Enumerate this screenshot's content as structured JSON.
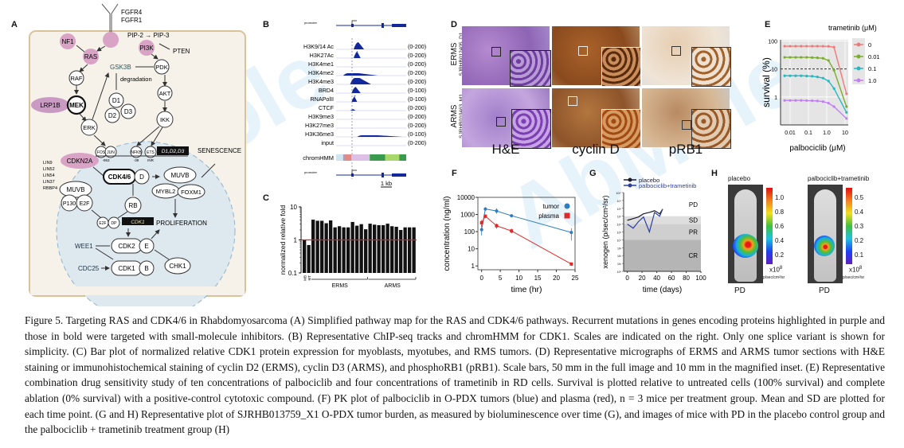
{
  "figure": {
    "panels": {
      "A": {
        "letter": "A",
        "receptors": [
          "FGFR4",
          "FGFR1"
        ],
        "nodes": {
          "nf1": "NF1",
          "ras": "RAS",
          "pi3k": "PI3K",
          "pip": "PIP-2 → PIP-3",
          "pten": "PTEN",
          "raf": "RAF",
          "gsk3b": "GSK3B",
          "degradation": "degradation",
          "pdk": "PDK",
          "lrp1b": "LRP1B",
          "mek": "MEK",
          "d1": "D1",
          "d2": "D2",
          "d3": "D3",
          "akt": "AKT",
          "erk": "ERK",
          "ikk": "IKK",
          "fos": "FOS",
          "jun": "JUN",
          "nfkb": "NFKB",
          "ets": "ETS",
          "fos_sub": "-953",
          "nfkb_sub": "-39",
          "ets_sub": "INR",
          "d_box": "D1,D2,D3",
          "senescence": "SENESCENCE",
          "cdkn2a": "CDKN2A",
          "lin": [
            "LIN9",
            "LIN52",
            "LIN54",
            "LIN37",
            "RBBP4"
          ],
          "cdk46": "CDK4/6",
          "dm": "D",
          "muvb_right": "MUVB",
          "mybl2": "MYBL2",
          "foxm1": "FOXM1",
          "muvb_left": "MUVB",
          "p130": "P130",
          "e2f": "E2F",
          "rb": "RB",
          "e2f_small": "E2F",
          "dp": "DP",
          "cdk1_box": "CDK1",
          "proliferation": "PROLIFERATION",
          "wee1": "WEE1",
          "cdk2": "CDK2",
          "e": "E",
          "chk1": "CHK1",
          "cdc25": "CDC25",
          "cdk1": "CDK1",
          "b": "B"
        },
        "colors": {
          "mutated": "#d9a3c6",
          "cell": "#f6f2ea",
          "membrane": "#d9c29a",
          "nucleus": "#dde8ef"
        }
      },
      "B": {
        "letter": "B",
        "promoter_label": "promoter",
        "tracks": [
          {
            "name": "H3K9/14 Ac",
            "scale": "(0-200)"
          },
          {
            "name": "H3K27Ac",
            "scale": "(0-200)"
          },
          {
            "name": "H3K4me1",
            "scale": "(0-200)"
          },
          {
            "name": "H3K4me2",
            "scale": "(0-200)"
          },
          {
            "name": "H3K4me3",
            "scale": "(0-200)"
          },
          {
            "name": "BRD4",
            "scale": "(0-100)"
          },
          {
            "name": "RNAPolII",
            "scale": "(0-100)"
          },
          {
            "name": "CTCF",
            "scale": "(0-200)"
          },
          {
            "name": "H3K9me3",
            "scale": "(0-200)"
          },
          {
            "name": "H3K27me3",
            "scale": "(0-200)"
          },
          {
            "name": "H3K36me3",
            "scale": "(0-100)"
          },
          {
            "name": "input",
            "scale": "(0-200)"
          }
        ],
        "chromhmm_label": "chromHMM",
        "chromhmm_segments": [
          {
            "color": "#cfe6f0",
            "frac": 0.1
          },
          {
            "color": "#a89cc8",
            "frac": 0.02
          },
          {
            "color": "#e08a8a",
            "frac": 0.1
          },
          {
            "color": "#dcc0e8",
            "frac": 0.26
          },
          {
            "color": "#3a9a4e",
            "frac": 0.22
          },
          {
            "color": "#a6d86a",
            "frac": 0.2
          },
          {
            "color": "#3a9a4e",
            "frac": 0.1
          }
        ],
        "scale_bar": "1 kb"
      },
      "C": {
        "letter": "C"
      },
      "D": {
        "letter": "D",
        "rows": [
          {
            "type": "ERMS",
            "sample": "SJRHB012405_D1"
          },
          {
            "type": "ARMS",
            "sample": "SJRHB010463_M1"
          }
        ],
        "columns": [
          "H&E",
          "cyclin D",
          "pRB1"
        ]
      },
      "E": {
        "letter": "E"
      },
      "F": {
        "letter": "F"
      },
      "G": {
        "letter": "G"
      },
      "H": {
        "letter": "H",
        "images": [
          {
            "title": "placebo",
            "outcome": "PD",
            "scale_ticks": [
              "1.0",
              "0.8",
              "0.6",
              "0.4",
              "0.2"
            ],
            "multiplier": "x10",
            "exp": "8",
            "unit": "p/sec/cm²/sr"
          },
          {
            "title": "palbociclib+trametinib",
            "outcome": "PD",
            "scale_ticks": [
              "0.5",
              "0.4",
              "0.3",
              "0.2",
              "0.1"
            ],
            "multiplier": "x10",
            "exp": "8",
            "unit": "p/sec/cm²/sr"
          }
        ]
      }
    },
    "caption": "Figure 5. Targeting RAS and CDK4/6 in Rhabdomyosarcoma (A) Simplified pathway map for the RAS and CDK4/6 pathways. Recurrent mutations in genes encoding proteins highlighted in purple and those in bold were targeted with small-molecule inhibitors. (B) Representative ChIP-seq tracks and chromHMM for CDK1. Scales are indicated on the right. Only one splice variant is shown for simplicity. (C) Bar plot of normalized relative CDK1 protein expression for myoblasts, myotubes, and RMS tumors. (D) Representative micrographs of ERMS and ARMS tumor sections with H&E staining or immunohistochemical staining of cyclin D2 (ERMS), cyclin D3 (ARMS), and phosphoRB1 (pRB1). Scale bars, 50 mm in the full image and 10 mm in the magnified inset. (E) Representative combination drug sensitivity study of ten concentrations of palbociclib and four concentrations of trametinib in RD cells. Survival is plotted relative to untreated cells (100% survival) and complete ablation (0% survival) with a positive-control cytotoxic compound. (F) PK plot of palbociclib in O-PDX tumors (blue) and plasma (red), n = 3 mice per treatment group. Mean and SD are plotted for each time point. (G and H) Representative plot of SJRHB013759_X1 O-PDX tumor burden, as measured by bioluminescence over time (G), and images of mice with PD in the placebo control group and the palbociclib + trametinib treatment group (H)",
    "watermark": "AbMole"
  },
  "chart_data": [
    {
      "panel": "C",
      "type": "bar",
      "title": "",
      "ylabel": "normalized relative fold",
      "yscale": "log",
      "ylim": [
        0.1,
        10
      ],
      "yticks": [
        "0.1",
        "1",
        "10"
      ],
      "reference_line": {
        "value": 1,
        "color": "#e02020"
      },
      "categories": [
        "MB",
        "MT",
        "ERMS",
        "ERMS",
        "ERMS",
        "ERMS",
        "ERMS",
        "ERMS",
        "ERMS",
        "ERMS",
        "ERMS",
        "ERMS",
        "ERMS",
        "ERMS",
        "ERMS",
        "ARMS",
        "ARMS",
        "ARMS",
        "ARMS",
        "ARMS",
        "ARMS",
        "ARMS",
        "ARMS",
        "ARMS",
        "ARMS",
        "ARMS"
      ],
      "group_labels": [
        {
          "label": "MB",
          "range": [
            0,
            0
          ]
        },
        {
          "label": "MT",
          "range": [
            1,
            1
          ]
        },
        {
          "label": "ERMS",
          "range": [
            2,
            14
          ]
        },
        {
          "label": "ARMS",
          "range": [
            15,
            25
          ]
        }
      ],
      "values": [
        1.0,
        0.7,
        4.1,
        3.8,
        3.8,
        3.2,
        3.9,
        2.4,
        2.6,
        2.4,
        2.4,
        3.5,
        2.7,
        3.0,
        2.1,
        3.1,
        2.9,
        2.8,
        2.8,
        3.1,
        2.6,
        2.5,
        2.0,
        2.4,
        2.4,
        2.4
      ]
    },
    {
      "panel": "E",
      "type": "line",
      "title": "",
      "xlabel": "palbociclib (μM)",
      "ylabel": "survival (%)",
      "xscale": "log",
      "yscale": "log",
      "xlim": [
        0.003,
        15
      ],
      "ylim": [
        0.1,
        110
      ],
      "xticks": [
        "0.01",
        "0.1",
        "1.0",
        "10"
      ],
      "yticks": [
        "1",
        "10",
        "100"
      ],
      "reference_line": {
        "value": 10,
        "style": "dashed"
      },
      "legend_title": "trametinib (μM)",
      "legend_position": "right",
      "x": [
        0.005,
        0.01,
        0.02,
        0.04,
        0.08,
        0.16,
        0.31,
        0.63,
        1.25,
        2.5,
        5,
        12
      ],
      "series": [
        {
          "name": "0",
          "color": "#f07a78",
          "values": [
            65,
            65,
            65,
            65,
            65,
            65,
            65,
            65,
            64,
            60,
            null,
            1.3
          ]
        },
        {
          "name": "0.01",
          "color": "#7aad2a",
          "values": [
            26,
            26,
            26,
            26,
            26,
            25.5,
            25,
            24,
            20,
            9,
            null,
            0.45
          ]
        },
        {
          "name": "0.1",
          "color": "#27b8bf",
          "values": [
            5.7,
            5.7,
            5.7,
            5.7,
            5.6,
            5.5,
            5.2,
            4.7,
            3.7,
            2.0,
            null,
            0.28
          ]
        },
        {
          "name": "1.0",
          "color": "#c27ff0",
          "values": [
            0.75,
            0.75,
            0.75,
            0.75,
            0.74,
            0.73,
            0.72,
            0.68,
            0.6,
            0.45,
            null,
            0.17
          ]
        }
      ]
    },
    {
      "panel": "F",
      "type": "line",
      "title": "",
      "xlabel": "time (hr)",
      "ylabel": "concentration (ng/ml)",
      "yscale": "log",
      "xlim": [
        -1,
        25
      ],
      "ylim": [
        0.6,
        10000
      ],
      "xticks": [
        "0",
        "5",
        "10",
        "15",
        "20",
        "25"
      ],
      "yticks": [
        "1",
        "10",
        "100",
        "1000",
        "10000"
      ],
      "legend_position": "top-right",
      "series": [
        {
          "name": "tumor",
          "color": "#2e7cc0",
          "marker": "circle",
          "x": [
            0,
            1,
            4,
            8,
            24
          ],
          "values": [
            130,
            2100,
            1600,
            850,
            90
          ],
          "sd_low": [
            60,
            1600,
            1100,
            700,
            30
          ],
          "sd_high": [
            250,
            2700,
            2300,
            1000,
            160
          ]
        },
        {
          "name": "plasma",
          "color": "#e02828",
          "marker": "square",
          "x": [
            0,
            1,
            4,
            8,
            24
          ],
          "values": [
            330,
            800,
            220,
            110,
            1.3
          ],
          "sd_low": [
            200,
            600,
            150,
            80,
            1.0
          ],
          "sd_high": [
            480,
            1000,
            300,
            150,
            1.6
          ]
        }
      ]
    },
    {
      "panel": "G",
      "type": "line",
      "title": "",
      "xlabel": "time (days)",
      "ylabel": "xenogen (p/sec/cm²/sr)",
      "yscale": "log",
      "xlim": [
        -5,
        100
      ],
      "ylim": [
        1,
        10000000000.0
      ],
      "xticks": [
        "0",
        "20",
        "40",
        "60",
        "80",
        "100"
      ],
      "yticks": [
        "10⁰",
        "10¹",
        "10²",
        "10³",
        "10⁴",
        "10⁵",
        "10⁶",
        "10⁷",
        "10⁸",
        "10⁹",
        "10¹⁰"
      ],
      "bands": [
        {
          "label": "PD",
          "from": 10000000.0,
          "to": 10000000000.0,
          "color": "#ffffff"
        },
        {
          "label": "SD",
          "from": 1000000.0,
          "to": 10000000.0,
          "color": "#dedede"
        },
        {
          "label": "PR",
          "from": 10000.0,
          "to": 1000000.0,
          "color": "#cfcfcf"
        },
        {
          "label": "CR",
          "from": 1,
          "to": 10000.0,
          "color": "#b5b5b5"
        }
      ],
      "legend_position": "top",
      "series": [
        {
          "name": "placebo",
          "color": "#1a1a2e",
          "x": [
            0,
            8,
            15,
            22,
            30,
            37,
            44,
            48
          ],
          "values": [
            3000000.0,
            5000000.0,
            8000000.0,
            20000000.0,
            30000000.0,
            50000000.0,
            20000000.0,
            80000000.0
          ]
        },
        {
          "name": "palbociclib+trametinib",
          "color": "#2a3fa0",
          "x": [
            0,
            8,
            15,
            22,
            30,
            37,
            44,
            48
          ],
          "values": [
            1000000.0,
            300000.0,
            2000000.0,
            8000000.0,
            100000.0,
            30000000.0,
            10000000.0,
            80000000.0
          ]
        }
      ]
    }
  ]
}
